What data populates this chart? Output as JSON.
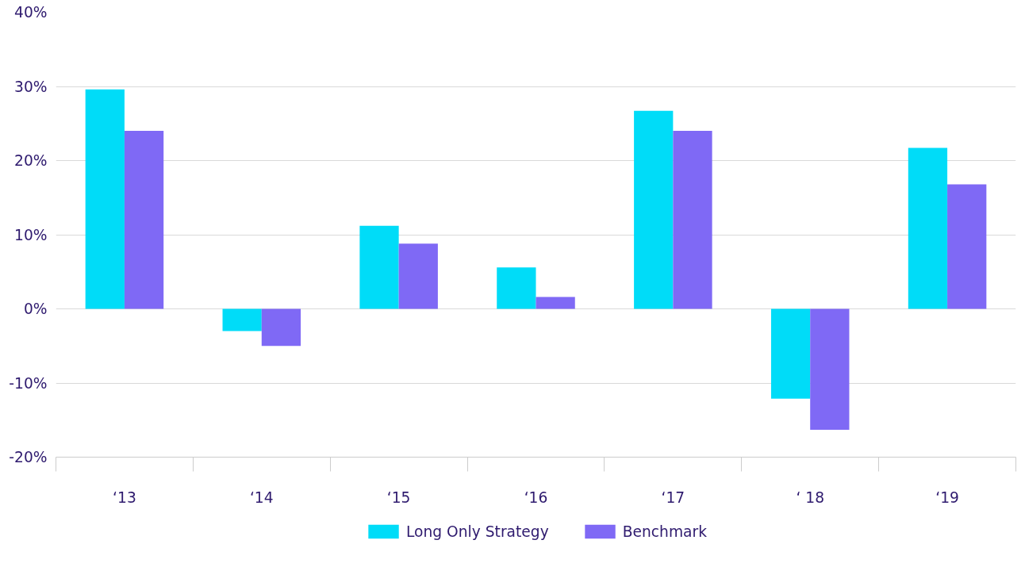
{
  "chart_data": {
    "type": "bar",
    "categories": [
      "‘13",
      "‘14",
      "‘15",
      "‘16",
      "‘17",
      "‘ 18",
      "‘19"
    ],
    "series": [
      {
        "name": "Long Only Strategy",
        "color": "#00dcf8",
        "values": [
          29.6,
          -3.0,
          11.2,
          5.6,
          26.7,
          -12.1,
          21.7
        ]
      },
      {
        "name": "Benchmark",
        "color": "#7f69f5",
        "values": [
          24.0,
          -5.0,
          8.8,
          1.6,
          24.0,
          -16.3,
          16.8
        ]
      }
    ],
    "ylim": [
      -20,
      40
    ],
    "yticks": [
      {
        "value": -20,
        "label": "-20%"
      },
      {
        "value": -10,
        "label": "-10%"
      },
      {
        "value": 0,
        "label": "0%"
      },
      {
        "value": 10,
        "label": "10%"
      },
      {
        "value": 20,
        "label": "20%"
      },
      {
        "value": 30,
        "label": "30%"
      },
      {
        "value": 40,
        "label": "40%"
      }
    ],
    "grid": "y",
    "legend": "bottom"
  }
}
